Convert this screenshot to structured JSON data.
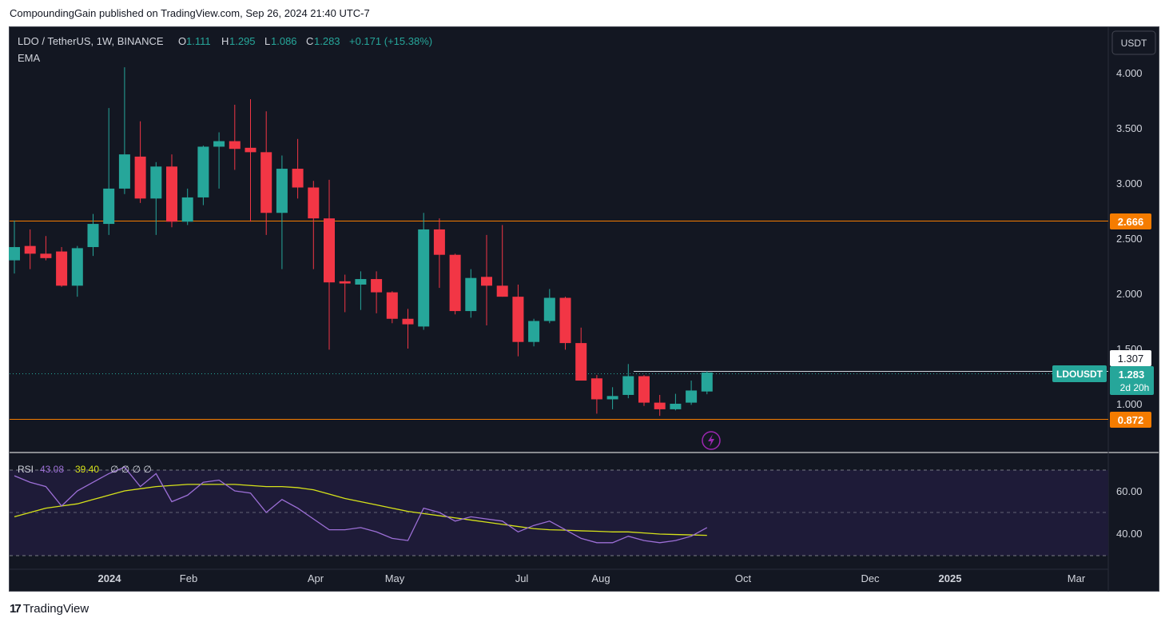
{
  "publisher_line": "CompoundingGain published on TradingView.com, Sep 26, 2024 21:40 UTC-7",
  "brand": "TradingView",
  "header": {
    "symbol": "LDO / TetherUS, 1W, BINANCE",
    "o_label": "O",
    "o_value": "1.111",
    "h_label": "H",
    "h_value": "1.295",
    "l_label": "L",
    "l_value": "1.086",
    "c_label": "C",
    "c_value": "1.283",
    "change": "+0.171 (+15.38%)",
    "indicator": "EMA"
  },
  "currency_button": "USDT",
  "price_axis": {
    "ticks": [
      "1.000",
      "1.500",
      "2.000",
      "2.500",
      "3.000",
      "3.500",
      "4.000"
    ],
    "tick_values": [
      1.0,
      1.5,
      2.0,
      2.5,
      3.0,
      3.5,
      4.0
    ],
    "labels": {
      "resistance": "2.666",
      "support": "0.872",
      "high_marker": "1.307",
      "current": "1.283",
      "countdown": "2d 20h",
      "symbol_tag": "LDOUSDT"
    }
  },
  "rsi": {
    "label": "RSI",
    "rsi_value": "43.08",
    "ma_value": "39.40",
    "extra": "∅ ∅ ∅ ∅",
    "ticks": [
      "40.00",
      "60.00"
    ]
  },
  "time_axis": [
    "2024",
    "Feb",
    "Apr",
    "May",
    "Jul",
    "Aug",
    "Oct",
    "Dec",
    "2025",
    "Mar"
  ],
  "colors": {
    "up": "#26a69a",
    "down": "#f23645",
    "bg": "#131722",
    "level": "#f57c00",
    "rsi_line": "#9c6fd6",
    "rsi_ma": "#d6e21a"
  },
  "chart_data": {
    "type": "candlestick",
    "title": "LDO / TetherUS, 1W, BINANCE",
    "ylim": [
      0.85,
      4.2
    ],
    "levels": [
      2.666,
      0.872
    ],
    "candles": [
      {
        "o": 2.3,
        "h": 2.66,
        "l": 2.18,
        "c": 2.42
      },
      {
        "o": 2.43,
        "h": 2.58,
        "l": 2.22,
        "c": 2.36
      },
      {
        "o": 2.36,
        "h": 2.52,
        "l": 2.3,
        "c": 2.32
      },
      {
        "o": 2.38,
        "h": 2.42,
        "l": 2.06,
        "c": 2.07
      },
      {
        "o": 2.07,
        "h": 2.43,
        "l": 1.97,
        "c": 2.41
      },
      {
        "o": 2.42,
        "h": 2.72,
        "l": 2.34,
        "c": 2.63
      },
      {
        "o": 2.63,
        "h": 3.68,
        "l": 2.53,
        "c": 2.95
      },
      {
        "o": 2.95,
        "h": 4.05,
        "l": 2.9,
        "c": 3.26
      },
      {
        "o": 3.24,
        "h": 3.56,
        "l": 2.82,
        "c": 2.86
      },
      {
        "o": 2.86,
        "h": 3.19,
        "l": 2.53,
        "c": 3.15
      },
      {
        "o": 3.15,
        "h": 3.26,
        "l": 2.6,
        "c": 2.65
      },
      {
        "o": 2.65,
        "h": 2.95,
        "l": 2.62,
        "c": 2.87
      },
      {
        "o": 2.87,
        "h": 3.34,
        "l": 2.8,
        "c": 3.33
      },
      {
        "o": 3.33,
        "h": 3.46,
        "l": 2.95,
        "c": 3.38
      },
      {
        "o": 3.38,
        "h": 3.71,
        "l": 3.12,
        "c": 3.31
      },
      {
        "o": 3.32,
        "h": 3.76,
        "l": 2.65,
        "c": 3.28
      },
      {
        "o": 3.28,
        "h": 3.65,
        "l": 2.53,
        "c": 2.73
      },
      {
        "o": 2.73,
        "h": 3.25,
        "l": 2.22,
        "c": 3.13
      },
      {
        "o": 3.13,
        "h": 3.4,
        "l": 2.86,
        "c": 2.96
      },
      {
        "o": 2.96,
        "h": 3.02,
        "l": 2.22,
        "c": 2.68
      },
      {
        "o": 2.68,
        "h": 3.03,
        "l": 1.49,
        "c": 2.1
      },
      {
        "o": 2.11,
        "h": 2.17,
        "l": 1.83,
        "c": 2.09
      },
      {
        "o": 2.08,
        "h": 2.2,
        "l": 1.85,
        "c": 2.13
      },
      {
        "o": 2.13,
        "h": 2.2,
        "l": 1.82,
        "c": 2.01
      },
      {
        "o": 2.01,
        "h": 2.02,
        "l": 1.73,
        "c": 1.77
      },
      {
        "o": 1.77,
        "h": 1.86,
        "l": 1.5,
        "c": 1.72
      },
      {
        "o": 1.7,
        "h": 2.73,
        "l": 1.67,
        "c": 2.58
      },
      {
        "o": 2.58,
        "h": 2.68,
        "l": 2.05,
        "c": 2.35
      },
      {
        "o": 2.35,
        "h": 2.36,
        "l": 1.81,
        "c": 1.84
      },
      {
        "o": 1.84,
        "h": 2.22,
        "l": 1.78,
        "c": 2.14
      },
      {
        "o": 2.15,
        "h": 2.53,
        "l": 1.71,
        "c": 2.07
      },
      {
        "o": 2.07,
        "h": 2.62,
        "l": 1.97,
        "c": 1.97
      },
      {
        "o": 1.97,
        "h": 2.08,
        "l": 1.43,
        "c": 1.56
      },
      {
        "o": 1.56,
        "h": 1.77,
        "l": 1.52,
        "c": 1.75
      },
      {
        "o": 1.75,
        "h": 2.04,
        "l": 1.73,
        "c": 1.96
      },
      {
        "o": 1.96,
        "h": 1.97,
        "l": 1.49,
        "c": 1.55
      },
      {
        "o": 1.55,
        "h": 1.69,
        "l": 1.21,
        "c": 1.21
      },
      {
        "o": 1.23,
        "h": 1.26,
        "l": 0.91,
        "c": 1.04
      },
      {
        "o": 1.04,
        "h": 1.15,
        "l": 0.95,
        "c": 1.07
      },
      {
        "o": 1.08,
        "h": 1.36,
        "l": 1.05,
        "c": 1.25
      },
      {
        "o": 1.25,
        "h": 1.26,
        "l": 0.98,
        "c": 1.01
      },
      {
        "o": 1.01,
        "h": 1.08,
        "l": 0.89,
        "c": 0.95
      },
      {
        "o": 0.95,
        "h": 1.09,
        "l": 0.94,
        "c": 1.0
      },
      {
        "o": 1.01,
        "h": 1.21,
        "l": 0.99,
        "c": 1.12
      },
      {
        "o": 1.111,
        "h": 1.295,
        "l": 1.086,
        "c": 1.283
      }
    ],
    "rsi_series": [
      67,
      64,
      62,
      53,
      60,
      64,
      68,
      71,
      62,
      68,
      55,
      58,
      64,
      65,
      60,
      59,
      50,
      56,
      52,
      47,
      42,
      42,
      43,
      41,
      38,
      37,
      52,
      50,
      46,
      48,
      47,
      46,
      41,
      44,
      46,
      42,
      38,
      36,
      36,
      39,
      37,
      36,
      37,
      39,
      43
    ],
    "rsi_ma_series": [
      48,
      50,
      52,
      53,
      54,
      56,
      58,
      60,
      61,
      62,
      62.5,
      63,
      63,
      63,
      63,
      62.5,
      62,
      62,
      61.5,
      60.5,
      58.5,
      56.5,
      55,
      53.5,
      52,
      50.5,
      49.5,
      48.5,
      47.5,
      46.5,
      45.5,
      44.5,
      43.5,
      42.5,
      42,
      41.8,
      41.5,
      41.3,
      41,
      41,
      40.5,
      40,
      39.8,
      39.6,
      39.4
    ]
  }
}
